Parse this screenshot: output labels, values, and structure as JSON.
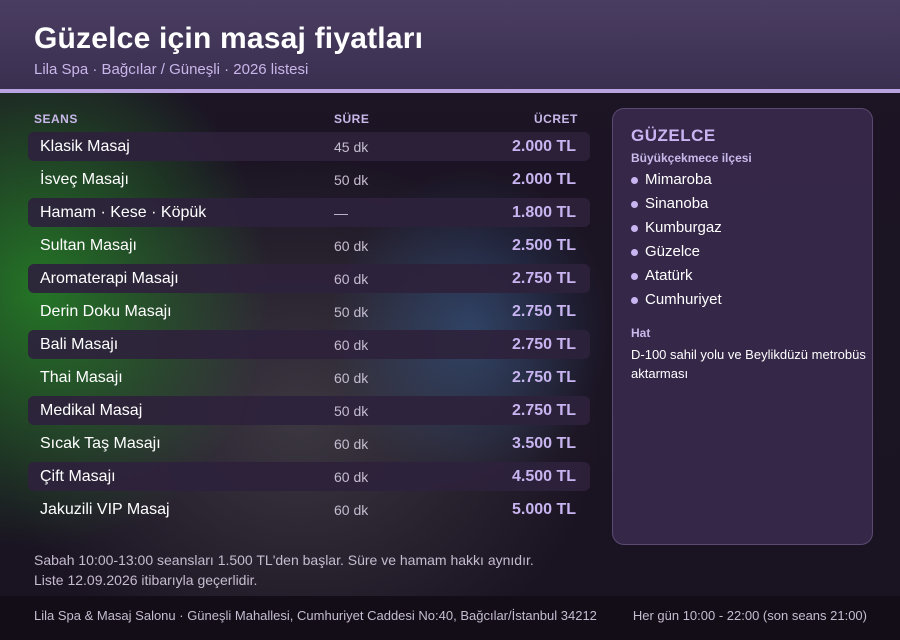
{
  "header": {
    "title": "Güzelce için masaj fiyatları",
    "subtitle": "Lila Spa · Bağcılar / Güneşli · 2026 listesi"
  },
  "table": {
    "headers": {
      "session": "SEANS",
      "duration": "SÜRE",
      "price": "ÜCRET"
    },
    "rows": [
      {
        "name": "Klasik Masaj",
        "duration": "45 dk",
        "price": "2.000 TL"
      },
      {
        "name": "İsveç Masajı",
        "duration": "50 dk",
        "price": "2.000 TL"
      },
      {
        "name": "Hamam · Kese · Köpük",
        "duration": "—",
        "price": "1.800 TL"
      },
      {
        "name": "Sultan Masajı",
        "duration": "60 dk",
        "price": "2.500 TL"
      },
      {
        "name": "Aromaterapi Masajı",
        "duration": "60 dk",
        "price": "2.750 TL"
      },
      {
        "name": "Derin Doku Masajı",
        "duration": "50 dk",
        "price": "2.750 TL"
      },
      {
        "name": "Bali Masajı",
        "duration": "60 dk",
        "price": "2.750 TL"
      },
      {
        "name": "Thai Masajı",
        "duration": "60 dk",
        "price": "2.750 TL"
      },
      {
        "name": "Medikal Masaj",
        "duration": "50 dk",
        "price": "2.750 TL"
      },
      {
        "name": "Sıcak Taş Masajı",
        "duration": "60 dk",
        "price": "3.500 TL"
      },
      {
        "name": "Çift Masajı",
        "duration": "60 dk",
        "price": "4.500 TL"
      },
      {
        "name": "Jakuzili VIP Masaj",
        "duration": "60 dk",
        "price": "5.000 TL"
      }
    ]
  },
  "sidebar": {
    "title": "GÜZELCE",
    "subtitle": "Büyükçekmece ilçesi",
    "neighborhoods": [
      "Mimaroba",
      "Sinanoba",
      "Kumburgaz",
      "Güzelce",
      "Atatürk",
      "Cumhuriyet"
    ],
    "route_label": "Hat",
    "route_text": "D-100 sahil yolu ve Beylikdüzü metrobüs aktarması"
  },
  "notes": {
    "line1": "Sabah 10:00-13:00 seansları 1.500 TL'den başlar. Süre ve hamam hakkı aynıdır.",
    "line2": "Liste 12.09.2026 itibarıyla geçerlidir."
  },
  "footer": {
    "address": "Lila Spa & Masaj Salonu · Güneşli Mahallesi, Cumhuriyet Caddesi No:40, Bağcılar/İstanbul 34212",
    "hours": "Her gün 10:00 - 22:00 (son seans 21:00)"
  },
  "colors": {
    "accent": "#c8b4f0",
    "header_bg": "#3f3356",
    "header_line": "#b9a3e0",
    "row_shade": "#2e223c",
    "footer_bg": "#130d18"
  }
}
